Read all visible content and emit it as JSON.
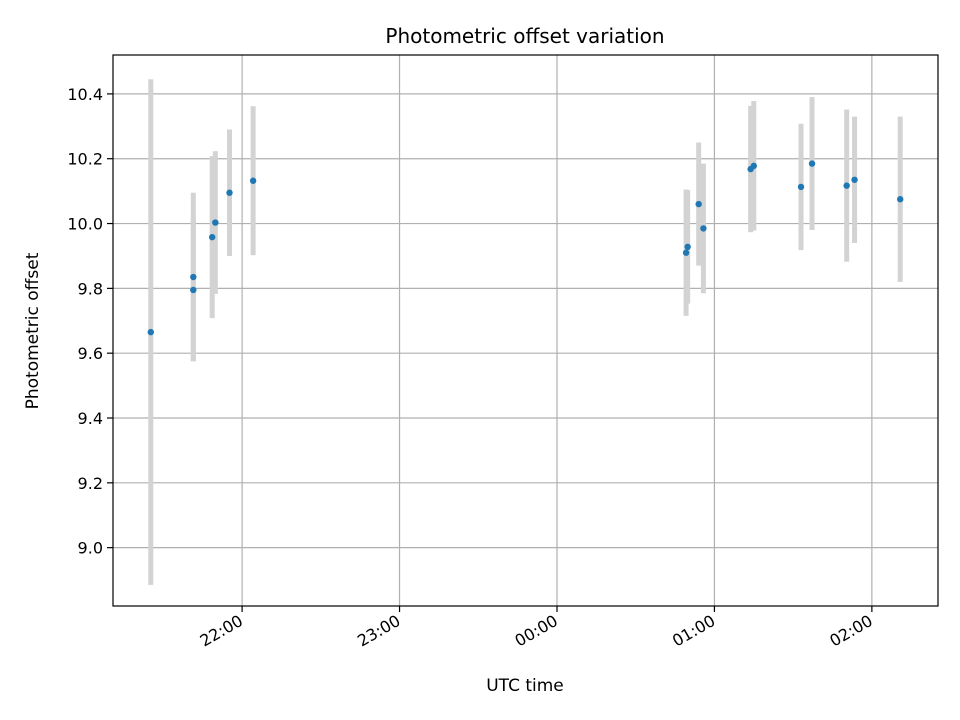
{
  "chart_data": {
    "type": "scatter",
    "title": "Photometric offset variation",
    "xlabel": "UTC time",
    "ylabel": "Photometric offset",
    "x_unit": "hours (UTC, continuing past midnight)",
    "xlim": [
      21.18,
      26.42
    ],
    "ylim": [
      8.82,
      10.52
    ],
    "x_ticks": [
      {
        "value": 22,
        "label": "22:00"
      },
      {
        "value": 23,
        "label": "23:00"
      },
      {
        "value": 24,
        "label": "00:00"
      },
      {
        "value": 25,
        "label": "01:00"
      },
      {
        "value": 26,
        "label": "02:00"
      }
    ],
    "y_ticks": [
      {
        "value": 9.0,
        "label": "9.0"
      },
      {
        "value": 9.2,
        "label": "9.2"
      },
      {
        "value": 9.4,
        "label": "9.4"
      },
      {
        "value": 9.6,
        "label": "9.6"
      },
      {
        "value": 9.8,
        "label": "9.8"
      },
      {
        "value": 10.0,
        "label": "10.0"
      },
      {
        "value": 10.2,
        "label": "10.2"
      },
      {
        "value": 10.4,
        "label": "10.4"
      }
    ],
    "grid": true,
    "marker_color": "#1f77b4",
    "errorbar_color": "#d3d3d3",
    "points": [
      {
        "x": 21.42,
        "y": 9.665,
        "err": 0.78
      },
      {
        "x": 21.69,
        "y": 9.795,
        "err": 0.22
      },
      {
        "x": 21.69,
        "y": 9.835,
        "err": 0.26
      },
      {
        "x": 21.81,
        "y": 9.958,
        "err": 0.25
      },
      {
        "x": 21.83,
        "y": 10.003,
        "err": 0.22
      },
      {
        "x": 21.92,
        "y": 10.095,
        "err": 0.195
      },
      {
        "x": 22.07,
        "y": 10.132,
        "err": 0.23
      },
      {
        "x": 24.82,
        "y": 9.91,
        "err": 0.195
      },
      {
        "x": 24.83,
        "y": 9.928,
        "err": 0.175
      },
      {
        "x": 24.9,
        "y": 10.06,
        "err": 0.19
      },
      {
        "x": 24.93,
        "y": 9.985,
        "err": 0.2
      },
      {
        "x": 25.23,
        "y": 10.168,
        "err": 0.195
      },
      {
        "x": 25.25,
        "y": 10.178,
        "err": 0.2
      },
      {
        "x": 25.55,
        "y": 10.113,
        "err": 0.195
      },
      {
        "x": 25.62,
        "y": 10.185,
        "err": 0.205
      },
      {
        "x": 25.84,
        "y": 10.117,
        "err": 0.235
      },
      {
        "x": 25.89,
        "y": 10.135,
        "err": 0.195
      },
      {
        "x": 26.18,
        "y": 10.075,
        "err": 0.255
      }
    ]
  }
}
